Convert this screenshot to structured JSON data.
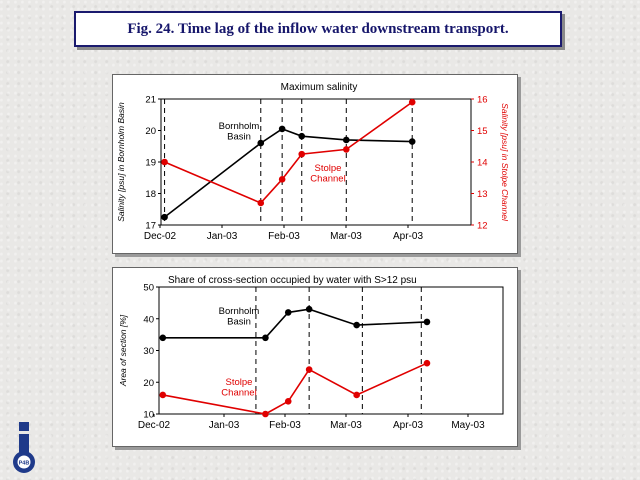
{
  "slide_title": "Fig. 24. Time lag of the inflow water downstream transport.",
  "logo_text": "P4B",
  "colors": {
    "black_series": "#000000",
    "red_series": "#e00000",
    "title_text": "#16166b"
  },
  "chart_data": [
    {
      "type": "line",
      "title": "Maximum salinity",
      "ylabel": "Salinity [psu] in Bornholm Basin",
      "y2label": "Salinity [psu] in Stolpe Channel",
      "x_tick_labels": [
        "Dec-02",
        "Jan-03",
        "Feb-03",
        "Mar-03",
        "Apr-03"
      ],
      "ylim": [
        17,
        21
      ],
      "y_ticks": [
        "17",
        "18",
        "19",
        "20",
        "21"
      ],
      "y2lim": [
        12,
        16
      ],
      "y2_ticks": [
        "12",
        "13",
        "14",
        "15",
        "16"
      ],
      "series": [
        {
          "name": "Bornholm Basin",
          "label": [
            "Bornholm",
            "Basin"
          ],
          "axis": "left",
          "points": [
            [
              "2002-12-03",
              17.25
            ],
            [
              "2003-01-26",
              19.6
            ],
            [
              "2003-02-07",
              20.05
            ],
            [
              "2003-02-18",
              19.82
            ],
            [
              "2003-03-15",
              19.7
            ],
            [
              "2003-04-21",
              19.65
            ]
          ]
        },
        {
          "name": "Stolpe Channel",
          "label": [
            "Stolpe",
            "Channel"
          ],
          "axis": "right",
          "points": [
            [
              "2002-12-03",
              14.0
            ],
            [
              "2003-01-26",
              12.7
            ],
            [
              "2003-02-07",
              13.45
            ],
            [
              "2003-02-18",
              14.25
            ],
            [
              "2003-03-15",
              14.4
            ],
            [
              "2003-04-21",
              15.9
            ]
          ]
        }
      ],
      "dashed_vlines": [
        "2002-12-03",
        "2003-01-26",
        "2003-02-07",
        "2003-02-18",
        "2003-03-15",
        "2003-04-21"
      ]
    },
    {
      "type": "line",
      "title": "Share of cross-section occupied by water with S>12 psu",
      "ylabel": "Area of section [%]",
      "x_tick_labels": [
        "Dec-02",
        "Jan-03",
        "Feb-03",
        "Mar-03",
        "Apr-03",
        "May-03"
      ],
      "ylim": [
        10,
        50
      ],
      "y_ticks": [
        "10",
        "20",
        "30",
        "40",
        "50"
      ],
      "series": [
        {
          "name": "Bornholm Basin",
          "label": [
            "Bornholm",
            "Basin"
          ],
          "points": [
            [
              "2002-12-03",
              34
            ],
            [
              "2003-01-26",
              34
            ],
            [
              "2003-02-07",
              42
            ],
            [
              "2003-02-18",
              43
            ],
            [
              "2003-03-15",
              38
            ],
            [
              "2003-04-21",
              39
            ]
          ]
        },
        {
          "name": "Stolpe Channel",
          "label": [
            "Stolpe",
            "Channel"
          ],
          "points": [
            [
              "2002-12-03",
              16
            ],
            [
              "2003-01-26",
              10
            ],
            [
              "2003-02-07",
              14
            ],
            [
              "2003-02-18",
              24
            ],
            [
              "2003-03-15",
              16
            ],
            [
              "2003-04-21",
              26
            ]
          ]
        }
      ],
      "dashed_vlines": [
        "2003-01-21",
        "2003-02-18",
        "2003-03-18",
        "2003-04-18"
      ]
    }
  ]
}
